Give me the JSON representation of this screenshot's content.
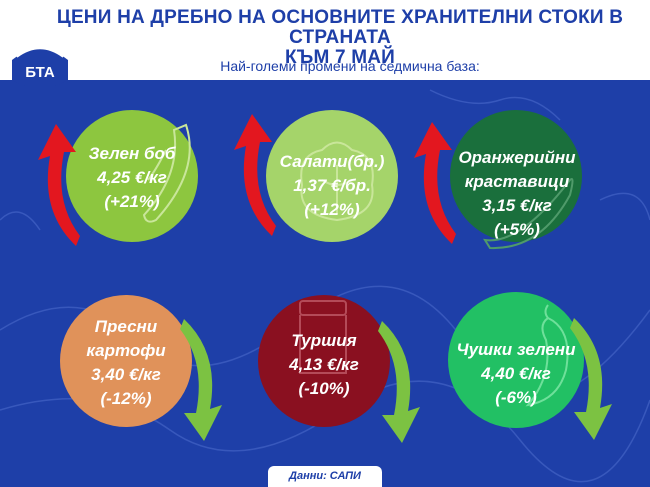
{
  "header": {
    "title_line1": "ЦЕНИ НА ДРЕБНО НА ОСНОВНИТЕ ХРАНИТЕЛНИ СТОКИ В СТРАНАТА",
    "title_line2": "КЪМ 7 МАЙ",
    "subtitle": "Най-големи промени на седмична база:",
    "logo_text": "БТА"
  },
  "colors": {
    "background": "#1e3fa8",
    "arrow_up": "#e3171f",
    "arrow_down": "#7cc242",
    "green_bean": "#8dc63f",
    "lettuce": "#a5d46a",
    "cucumber": "#1a6f3c",
    "potato": "#e0925a",
    "pickle": "#8a1020",
    "pepper": "#22c064"
  },
  "items": [
    {
      "name": "Зелен боб",
      "price": "4,25 €/кг",
      "change": "(+21%)",
      "trend": "up",
      "icon": "green-bean-icon"
    },
    {
      "name": "Салати(бр.)",
      "price": "1,37 €/бр.",
      "change": "(+12%)",
      "trend": "up",
      "icon": "lettuce-icon"
    },
    {
      "name_line1": "Оранжерийни",
      "name_line2": "краставици",
      "price": "3,15 €/кг",
      "change": "(+5%)",
      "trend": "up",
      "icon": "cucumber-icon"
    },
    {
      "name_line1": "Пресни",
      "name_line2": "картофи",
      "price": "3,40 €/кг",
      "change": "(-12%)",
      "trend": "down",
      "icon": "potato-icon"
    },
    {
      "name": "Туршия",
      "price": "4,13 €/кг",
      "change": "(-10%)",
      "trend": "down",
      "icon": "pickle-jar-icon"
    },
    {
      "name": "Чушки зелени",
      "price": "4,40 €/кг",
      "change": "(-6%)",
      "trend": "down",
      "icon": "pepper-icon"
    }
  ],
  "footer": {
    "source": "Данни: САПИ"
  }
}
